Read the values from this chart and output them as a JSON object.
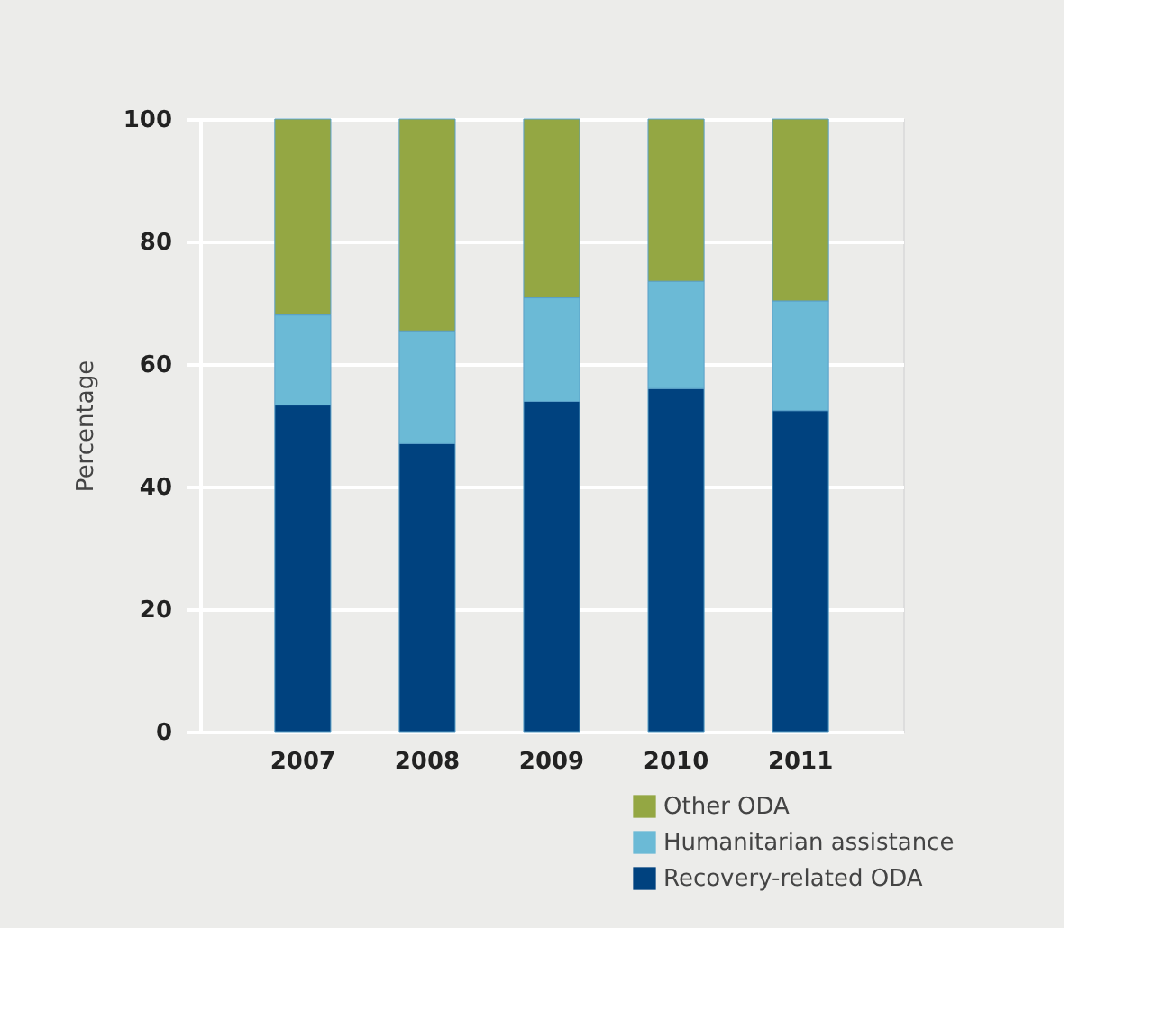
{
  "chart_data": {
    "type": "bar",
    "stacked": true,
    "ylabel": "Percentage",
    "categories": [
      "2007",
      "2008",
      "2009",
      "2010",
      "2011"
    ],
    "series": [
      {
        "name": "Recovery-related ODA",
        "color": "#00427f",
        "values": [
          53.3,
          47.0,
          53.9,
          56.0,
          52.4
        ]
      },
      {
        "name": "Humanitarian assistance",
        "color": "#6bbad6",
        "values": [
          14.7,
          18.4,
          16.9,
          17.5,
          17.9
        ]
      },
      {
        "name": "Other ODA",
        "color": "#94a743",
        "values": [
          32.0,
          34.6,
          29.2,
          26.5,
          29.7
        ]
      }
    ],
    "ylim": [
      0,
      100
    ],
    "yticks": [
      0,
      20,
      40,
      60,
      80,
      100
    ],
    "grid": "y",
    "legend": "bottom right"
  }
}
